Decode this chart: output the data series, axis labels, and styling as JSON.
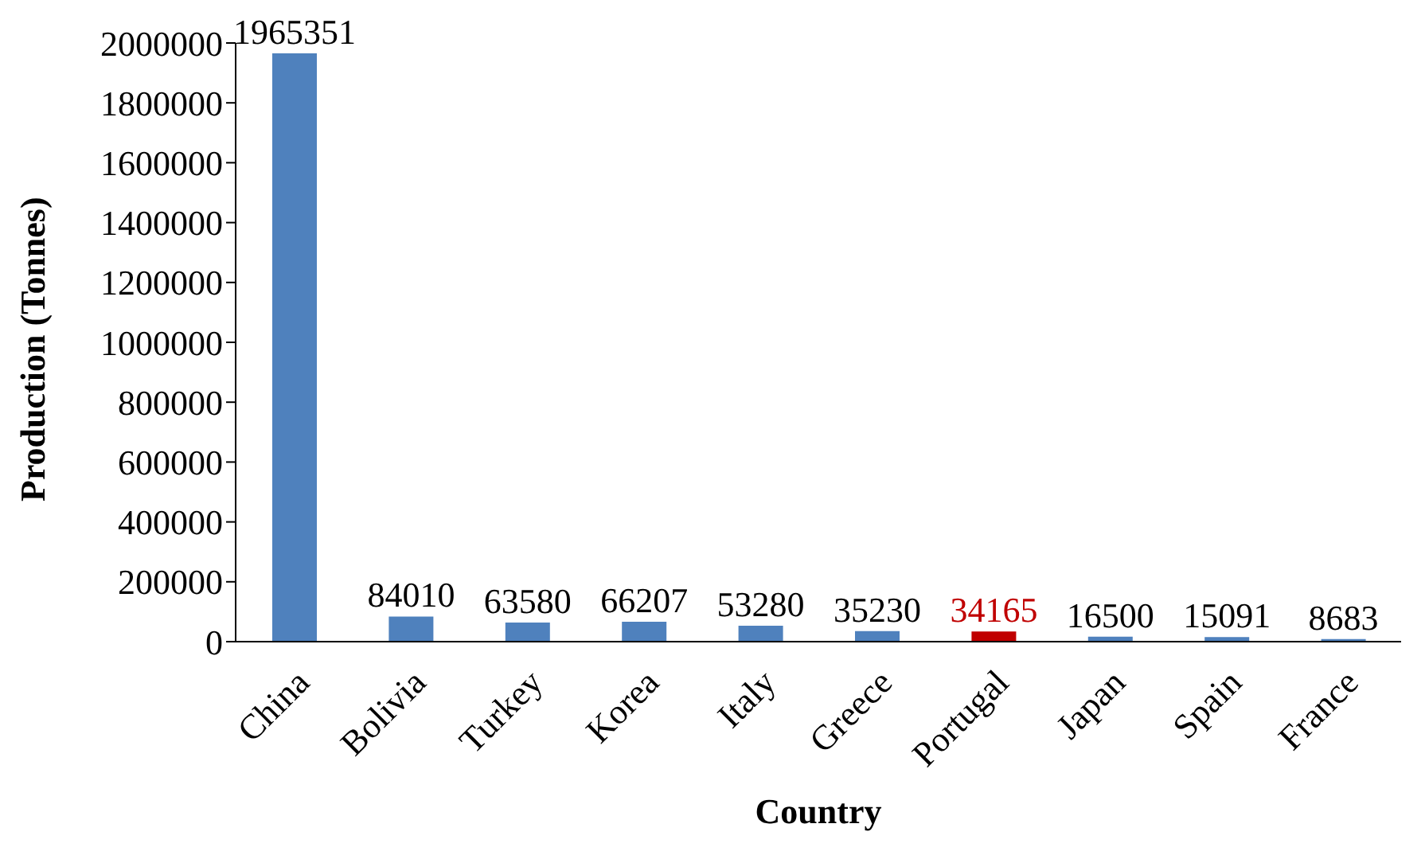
{
  "chart_data": {
    "type": "bar",
    "xlabel": "Country",
    "ylabel": "Production (Tonnes)",
    "categories": [
      "China",
      "Bolivia",
      "Turkey",
      "Korea",
      "Italy",
      "Greece",
      "Portugal",
      "Japan",
      "Spain",
      "France"
    ],
    "values": [
      1965351,
      84010,
      63580,
      66207,
      53280,
      35230,
      34165,
      16500,
      15091,
      8683
    ],
    "colors": [
      "#4f81bd",
      "#4f81bd",
      "#4f81bd",
      "#4f81bd",
      "#4f81bd",
      "#4f81bd",
      "#c00000",
      "#4f81bd",
      "#4f81bd",
      "#4f81bd"
    ],
    "ylim": [
      0,
      2000000
    ],
    "yticks": [
      0,
      200000,
      400000,
      600000,
      800000,
      1000000,
      1200000,
      1400000,
      1600000,
      1800000,
      2000000
    ],
    "data_labels": true,
    "grid": false,
    "legend": false
  }
}
